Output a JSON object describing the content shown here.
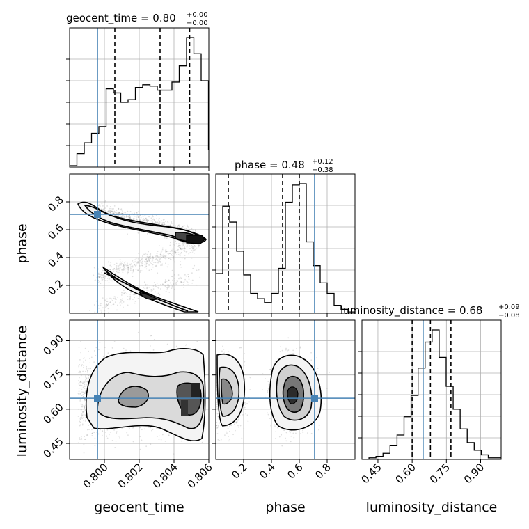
{
  "chart_data": {
    "type": "corner",
    "parameters": [
      "geocent_time",
      "phase",
      "luminosity_distance"
    ],
    "truths": {
      "geocent_time": 0.7996,
      "phase": 0.71,
      "luminosity_distance": 0.648
    },
    "titles": [
      {
        "param": "geocent_time",
        "text": "geocent_time = 0.80",
        "sup": "+0.00",
        "sub": "−0.00"
      },
      {
        "param": "phase",
        "text": "phase = 0.48",
        "sup": "+0.12",
        "sub": "−0.38"
      },
      {
        "param": "luminosity_distance",
        "text": "luminosity_distance = 0.68",
        "sup": "+0.09",
        "sub": "−0.08"
      }
    ],
    "axes": {
      "geocent_time": {
        "range": [
          0.798,
          0.806
        ],
        "ticks": [
          0.8,
          0.802,
          0.804,
          0.806
        ],
        "tick_labels": [
          "0.800",
          "0.802",
          "0.804",
          "0.806"
        ]
      },
      "phase": {
        "range": [
          0.0,
          1.0
        ],
        "ticks": [
          0.2,
          0.4,
          0.6,
          0.8
        ],
        "tick_labels": [
          "0.2",
          "0.4",
          "0.6",
          "0.8"
        ]
      },
      "luminosity_distance": {
        "range": [
          0.38,
          0.99
        ],
        "ticks": [
          0.45,
          0.6,
          0.75,
          0.9
        ],
        "tick_labels": [
          "0.45",
          "0.60",
          "0.75",
          "0.90"
        ]
      }
    },
    "axis_labels": {
      "geocent_time": "geocent_time",
      "phase": "phase",
      "luminosity_distance": "luminosity_distance"
    },
    "histograms": {
      "geocent_time": {
        "bins": [
          0.798,
          0.8064
        ],
        "counts": [
          1,
          10,
          18,
          25,
          30,
          58,
          55,
          48,
          50,
          59,
          61,
          60,
          57,
          57,
          63,
          75,
          96,
          84,
          64,
          13
        ],
        "quantiles": [
          0.8006,
          0.8032,
          0.8049
        ]
      },
      "phase": {
        "bins": [
          0.0,
          1.0
        ],
        "counts": [
          30,
          81,
          69,
          47,
          29,
          15,
          11,
          8,
          15,
          34,
          84,
          97,
          98,
          54,
          36,
          23,
          15,
          6,
          3,
          1
        ],
        "quantiles": [
          0.09,
          0.48,
          0.6
        ]
      },
      "luminosity_distance": {
        "bins": [
          0.38,
          0.995
        ],
        "counts": [
          0,
          1,
          2,
          4,
          9,
          16,
          28,
          42,
          60,
          77,
          85,
          67,
          48,
          33,
          20,
          11,
          6,
          3,
          1,
          1
        ],
        "quantiles": [
          0.6,
          0.68,
          0.77
        ]
      }
    }
  }
}
